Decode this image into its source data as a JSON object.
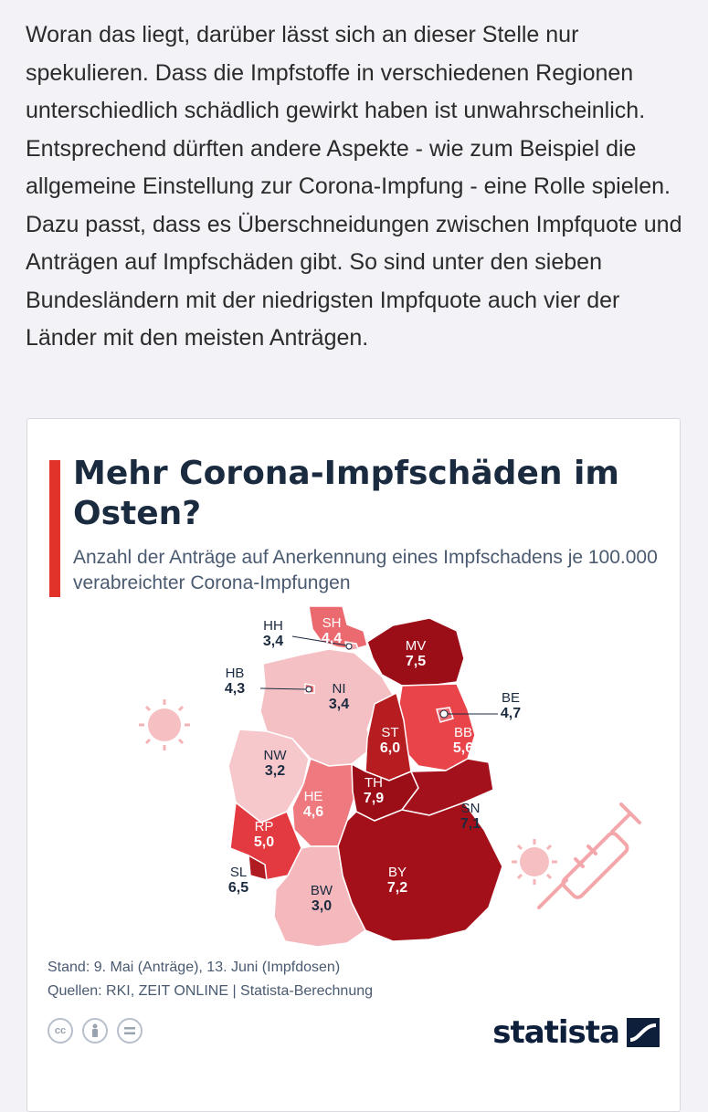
{
  "article": {
    "paragraph": "Woran das liegt, darüber lässt sich an dieser Stelle nur spekulieren. Dass die Impfstoffe in verschiedenen Regionen unterschiedlich schädlich gewirkt haben ist unwahrscheinlich. Entsprechend dürften andere Aspekte - wie zum Beispiel die allgemeine Einstellung zur Corona-Impfung - eine Rolle spielen. Dazu passt, dass es Überschneidungen zwischen Impfquote und Anträgen auf Impfschäden gibt. So sind unter den sieben Bundesländern mit der niedrigsten Impfquote auch vier der Länder mit den meisten Anträgen."
  },
  "infographic": {
    "title": "Mehr Corona-Impfschäden im Osten?",
    "subtitle": "Anzahl der Anträge auf Anerkennung eines Impfschadens je 100.000 verabreichter Corona-Impfungen",
    "footer_stand": "Stand: 9. Mai (Anträge), 13. Juni (Impfdosen)",
    "footer_sources": "Quellen: RKI, ZEIT ONLINE | Statista-Berechnung",
    "license_icons": [
      "cc",
      "by",
      "nd"
    ],
    "logo_text": "statista",
    "colors": {
      "accent": "#e2332b",
      "title": "#1a2a3f",
      "scale_low": "#f6b8bd",
      "scale_mid": "#e8444a",
      "scale_high": "#9b0d17"
    },
    "states": [
      {
        "code": "SH",
        "value": "4,4"
      },
      {
        "code": "HH",
        "value": "3,4"
      },
      {
        "code": "MV",
        "value": "7,5"
      },
      {
        "code": "HB",
        "value": "4,3"
      },
      {
        "code": "NI",
        "value": "3,4"
      },
      {
        "code": "BE",
        "value": "4,7"
      },
      {
        "code": "BB",
        "value": "5,6"
      },
      {
        "code": "ST",
        "value": "6,0"
      },
      {
        "code": "NW",
        "value": "3,2"
      },
      {
        "code": "TH",
        "value": "7,9"
      },
      {
        "code": "SN",
        "value": "7,1"
      },
      {
        "code": "HE",
        "value": "4,6"
      },
      {
        "code": "RP",
        "value": "5,0"
      },
      {
        "code": "SL",
        "value": "6,5"
      },
      {
        "code": "BY",
        "value": "7,2"
      },
      {
        "code": "BW",
        "value": "3,0"
      }
    ]
  }
}
